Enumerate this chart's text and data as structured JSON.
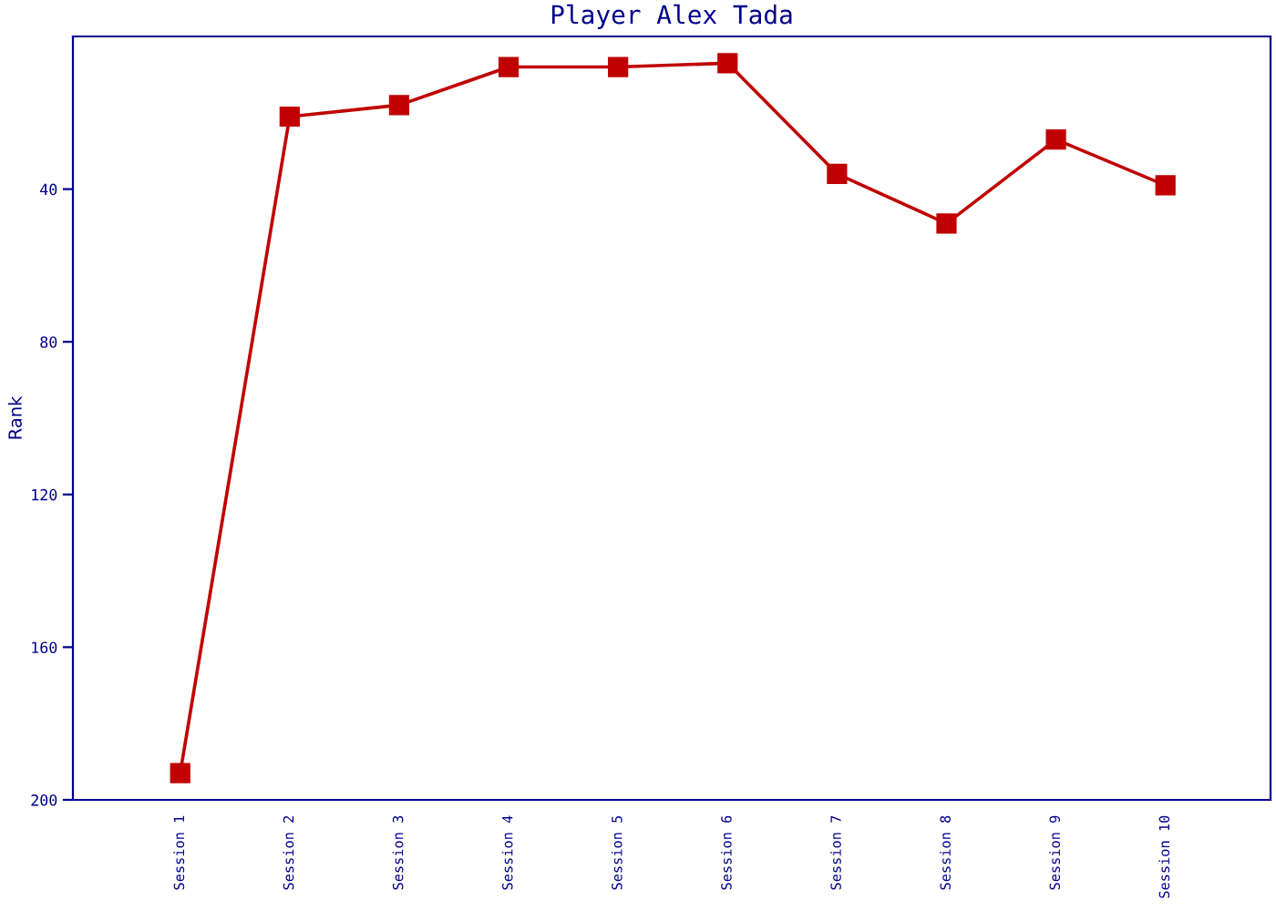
{
  "chart_data": {
    "type": "line",
    "title": "Player Alex Tada",
    "ylabel": "Rank",
    "categories": [
      "Session 1",
      "Session 2",
      "Session 3",
      "Session 4",
      "Session 5",
      "Session 6",
      "Session 7",
      "Session 8",
      "Session 9",
      "Session 10"
    ],
    "series": [
      {
        "color": "#c00000",
        "values": [
          193,
          21,
          18,
          8,
          8,
          7,
          36,
          49,
          27,
          39
        ]
      }
    ],
    "ylim": [
      200,
      0
    ],
    "yticks": [
      40,
      80,
      120,
      160,
      200
    ],
    "marker": "square",
    "line_style": "solid",
    "grid": false,
    "legend": false
  }
}
